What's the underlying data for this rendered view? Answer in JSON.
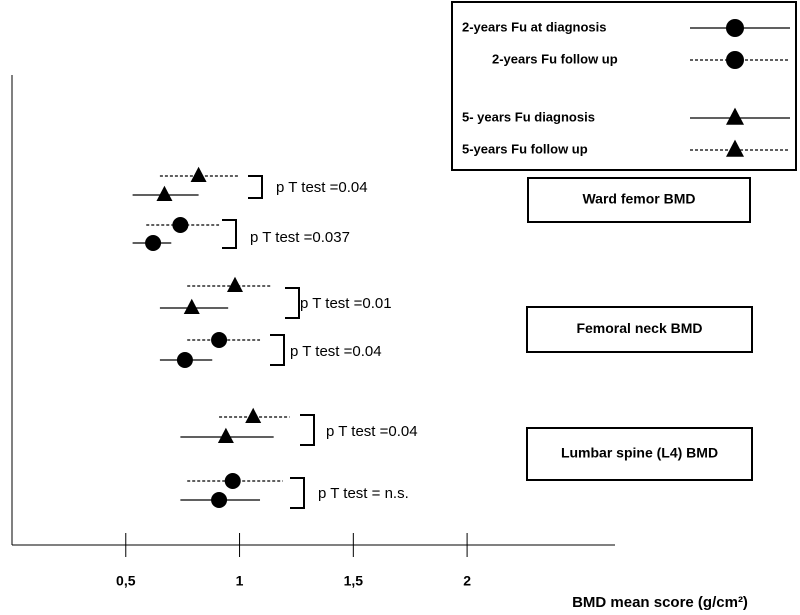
{
  "chart_data": {
    "type": "forest",
    "x_label": "BMD mean score (g/cm²)",
    "xlim": [
      0,
      2.65
    ],
    "xticks": [
      {
        "value": 0.5,
        "label": "0,5"
      },
      1,
      {
        "value": 1.5,
        "label": "1,5"
      },
      2
    ],
    "categories": [
      "Ward femor BMD",
      "Femoral neck BMD",
      "Lumbar spine (L4) BMD"
    ],
    "series": [
      {
        "name": "2-years Fu at diagnosis",
        "marker": "circle",
        "line": "solid",
        "color": "#000000",
        "values": [
          0.62,
          0.76,
          0.91
        ],
        "low": [
          0.53,
          0.65,
          0.74
        ],
        "high": [
          0.7,
          0.88,
          1.09
        ]
      },
      {
        "name": "2-years Fu follow up",
        "marker": "circle",
        "line": "dashed",
        "color": "#000000",
        "values": [
          0.74,
          0.91,
          0.97
        ],
        "low": [
          0.59,
          0.77,
          0.77
        ],
        "high": [
          0.91,
          1.09,
          1.19
        ]
      },
      {
        "name": "5- years Fu diagnosis",
        "marker": "triangle",
        "line": "solid",
        "color": "#000000",
        "values": [
          0.67,
          0.79,
          0.94
        ],
        "low": [
          0.53,
          0.65,
          0.74
        ],
        "high": [
          0.82,
          0.95,
          1.15
        ]
      },
      {
        "name": "5-years Fu follow up",
        "marker": "triangle",
        "line": "dashed",
        "color": "#000000",
        "values": [
          0.82,
          0.98,
          1.06
        ],
        "low": [
          0.65,
          0.77,
          0.91
        ],
        "high": [
          1.0,
          1.14,
          1.22
        ]
      }
    ],
    "annotations": [
      [
        "p T test =0.04",
        "p T test =0.037"
      ],
      [
        "p T test =0.01",
        "p T test =0.04"
      ],
      [
        "p T test =0.04",
        "p T test = n.s."
      ]
    ]
  }
}
